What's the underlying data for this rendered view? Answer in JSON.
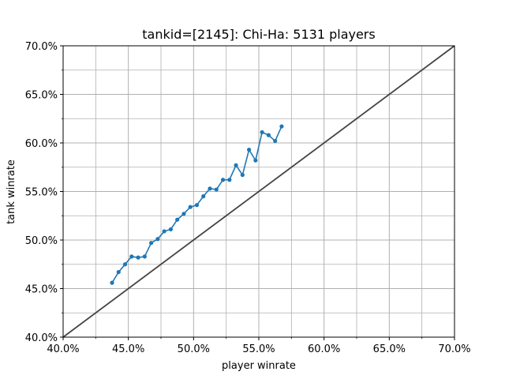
{
  "chart_data": {
    "type": "line",
    "title": "tankid=[2145]: Chi-Ha: 5131 players",
    "xlabel": "player winrate",
    "ylabel": "tank winrate",
    "xlim": [
      0.4,
      0.7
    ],
    "ylim": [
      0.4,
      0.7
    ],
    "grid": true,
    "xticks": [
      0.4,
      0.45,
      0.5,
      0.55,
      0.6,
      0.65,
      0.7
    ],
    "yticks": [
      0.4,
      0.45,
      0.5,
      0.55,
      0.6,
      0.65,
      0.7
    ],
    "xtick_labels": [
      "40.0%",
      "45.0%",
      "50.0%",
      "55.0%",
      "60.0%",
      "65.0%",
      "70.0%"
    ],
    "ytick_labels": [
      "40.0%",
      "45.0%",
      "50.0%",
      "55.0%",
      "60.0%",
      "65.0%",
      "70.0%"
    ],
    "reference_line": {
      "x": [
        0.4,
        0.7
      ],
      "y": [
        0.4,
        0.7
      ],
      "color": "#444444"
    },
    "series": [
      {
        "color": "#1f77b4",
        "x": [
          0.4375,
          0.4425,
          0.4475,
          0.4525,
          0.4575,
          0.4625,
          0.4675,
          0.4725,
          0.4775,
          0.4825,
          0.4875,
          0.4925,
          0.4975,
          0.5025,
          0.5075,
          0.5125,
          0.5175,
          0.5225,
          0.5275,
          0.5325,
          0.5375,
          0.5425,
          0.5475,
          0.5525,
          0.5575,
          0.5625,
          0.5675
        ],
        "y": [
          0.456,
          0.467,
          0.475,
          0.483,
          0.482,
          0.483,
          0.497,
          0.501,
          0.509,
          0.511,
          0.521,
          0.527,
          0.534,
          0.536,
          0.545,
          0.553,
          0.552,
          0.562,
          0.562,
          0.577,
          0.567,
          0.593,
          0.582,
          0.611,
          0.608,
          0.602,
          0.617
        ]
      }
    ]
  }
}
